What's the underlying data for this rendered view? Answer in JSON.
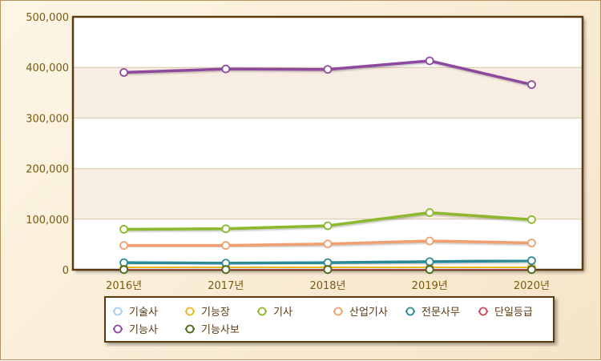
{
  "colors": {
    "plot_border": "#5a3a0e",
    "band_light": "#ffffff",
    "band_tint": "#f8ede2",
    "grid": "#d7c6a8",
    "tick_text": "#7a5a10"
  },
  "chart_data": {
    "type": "line",
    "categories": [
      "2016년",
      "2017년",
      "2018년",
      "2019년",
      "2020년"
    ],
    "ylim": [
      0,
      500000
    ],
    "y_ticks": [
      "0",
      "100,000",
      "200,000",
      "300,000",
      "400,000",
      "500,000"
    ],
    "grid": true,
    "legend_position": "bottom",
    "series": [
      {
        "name": "기술사",
        "color": "#a9cdea",
        "values": [
          1500,
          1500,
          1600,
          1700,
          1800
        ]
      },
      {
        "name": "기능장",
        "color": "#e8b923",
        "values": [
          4000,
          4200,
          4500,
          5000,
          5500
        ]
      },
      {
        "name": "기사",
        "color": "#8db82e",
        "values": [
          80000,
          81000,
          87000,
          113000,
          99000
        ]
      },
      {
        "name": "산업기사",
        "color": "#f0a070",
        "values": [
          48000,
          48000,
          51000,
          57000,
          53000
        ]
      },
      {
        "name": "전문사무",
        "color": "#2a8a96",
        "values": [
          14000,
          13000,
          14000,
          16000,
          18000
        ]
      },
      {
        "name": "단일등급",
        "color": "#c94a5a",
        "values": [
          600,
          700,
          800,
          900,
          1000
        ]
      },
      {
        "name": "기능사",
        "color": "#8e4a9e",
        "values": [
          390000,
          397000,
          396000,
          413000,
          366000
        ]
      },
      {
        "name": "기능사보",
        "color": "#4a6a1a",
        "values": [
          300,
          300,
          300,
          300,
          300
        ]
      }
    ]
  }
}
